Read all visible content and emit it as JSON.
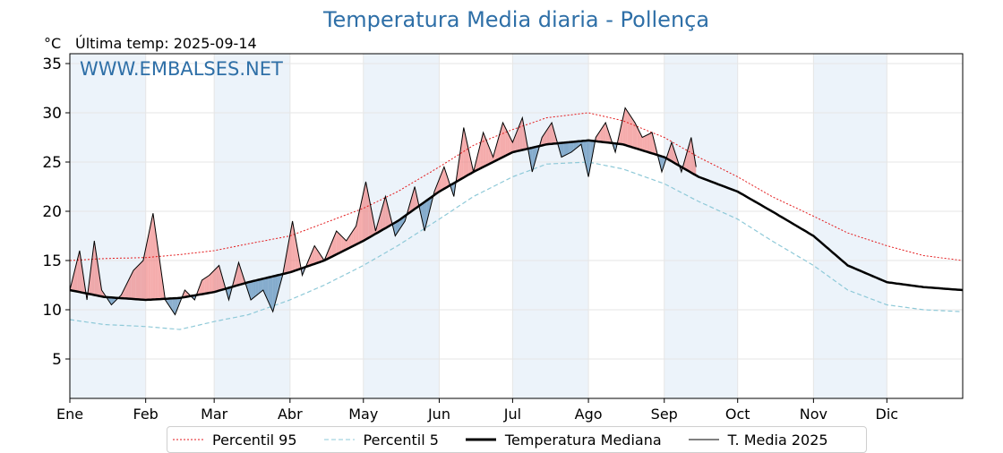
{
  "title": "Temperatura Media diaria - Pollença",
  "unit_label": "°C",
  "last_temp_label": "Última temp: 2025-09-14",
  "watermark": "WWW.EMBALSES.NET",
  "colors": {
    "title": "#2e6fa7",
    "p95": "#e31a1c",
    "p5": "#8ec9d8",
    "median": "#000000",
    "current": "#000000",
    "above_fill": "#f08080",
    "below_fill": "#4f85b5",
    "band": "#ecf3fa"
  },
  "chart_data": {
    "type": "line",
    "x_unit": "day of year",
    "xlim": [
      1,
      366
    ],
    "ylim": [
      1,
      36
    ],
    "yticks": [
      5,
      10,
      15,
      20,
      25,
      30,
      35
    ],
    "month_labels": [
      "Ene",
      "Feb",
      "Mar",
      "Abr",
      "May",
      "Jun",
      "Jul",
      "Ago",
      "Sep",
      "Oct",
      "Nov",
      "Dic"
    ],
    "month_start_days": [
      1,
      32,
      60,
      91,
      121,
      152,
      182,
      213,
      244,
      274,
      305,
      335
    ],
    "grid": true,
    "legend_position": "bottom",
    "series": [
      {
        "name": "Percentil 95",
        "style": "dotted",
        "x": [
          1,
          15,
          32,
          46,
          60,
          74,
          91,
          105,
          121,
          135,
          152,
          166,
          182,
          196,
          213,
          227,
          244,
          258,
          274,
          288,
          305,
          319,
          335,
          350,
          366
        ],
        "values": [
          15.0,
          15.2,
          15.3,
          15.6,
          16.0,
          16.7,
          17.5,
          18.8,
          20.3,
          22.0,
          24.5,
          26.7,
          28.3,
          29.5,
          30.0,
          29.2,
          27.5,
          25.5,
          23.5,
          21.5,
          19.5,
          17.8,
          16.5,
          15.5,
          15.0
        ]
      },
      {
        "name": "Percentil 5",
        "style": "dashed",
        "x": [
          1,
          15,
          32,
          46,
          60,
          74,
          91,
          105,
          121,
          135,
          152,
          166,
          182,
          196,
          213,
          227,
          244,
          258,
          274,
          288,
          305,
          319,
          335,
          350,
          366
        ],
        "values": [
          9.0,
          8.5,
          8.3,
          8.0,
          8.8,
          9.5,
          11.0,
          12.5,
          14.5,
          16.5,
          19.2,
          21.5,
          23.5,
          24.8,
          25.0,
          24.3,
          22.8,
          21.0,
          19.2,
          17.0,
          14.5,
          12.0,
          10.5,
          10.0,
          9.8
        ]
      },
      {
        "name": "Temperatura Mediana",
        "style": "solid-thick",
        "x": [
          1,
          15,
          32,
          46,
          60,
          74,
          91,
          105,
          121,
          135,
          152,
          166,
          182,
          196,
          213,
          227,
          244,
          258,
          274,
          288,
          305,
          319,
          335,
          350,
          366
        ],
        "values": [
          12.0,
          11.3,
          11.0,
          11.2,
          11.8,
          12.8,
          13.8,
          15.0,
          17.0,
          19.0,
          22.0,
          24.0,
          26.0,
          26.8,
          27.2,
          26.8,
          25.5,
          23.5,
          22.0,
          20.0,
          17.5,
          14.5,
          12.8,
          12.3,
          12.0
        ]
      },
      {
        "name": "T. Media 2025",
        "style": "solid-thin",
        "x": [
          1,
          5,
          8,
          11,
          14,
          18,
          22,
          27,
          31,
          35,
          40,
          44,
          48,
          52,
          55,
          58,
          62,
          66,
          70,
          75,
          80,
          84,
          88,
          92,
          96,
          101,
          105,
          110,
          114,
          118,
          122,
          126,
          130,
          134,
          138,
          142,
          146,
          150,
          154,
          158,
          162,
          166,
          170,
          174,
          178,
          182,
          186,
          190,
          194,
          198,
          202,
          206,
          210,
          213,
          216,
          220,
          224,
          228,
          232,
          235,
          239,
          243,
          247,
          251,
          255,
          257
        ],
        "values": [
          12.0,
          16.0,
          11.0,
          17.0,
          12.0,
          10.5,
          11.5,
          14.0,
          15.0,
          19.8,
          11.0,
          9.5,
          12.0,
          11.0,
          13.0,
          13.5,
          14.5,
          11.0,
          14.8,
          11.0,
          12.0,
          9.8,
          13.5,
          19.0,
          13.5,
          16.5,
          15.0,
          18.0,
          17.0,
          18.5,
          23.0,
          18.0,
          21.5,
          17.5,
          19.0,
          22.5,
          18.0,
          22.0,
          24.5,
          21.5,
          28.5,
          24.0,
          28.0,
          25.5,
          29.0,
          27.0,
          29.5,
          24.0,
          27.5,
          29.0,
          25.5,
          26.0,
          26.8,
          23.5,
          27.5,
          29.0,
          26.0,
          30.5,
          29.0,
          27.5,
          28.0,
          24.0,
          27.0,
          24.0,
          27.5,
          24.5
        ]
      }
    ]
  },
  "legend": {
    "p95": "Percentil 95",
    "p5": "Percentil 5",
    "median": "Temperatura Mediana",
    "current": "T. Media 2025"
  }
}
